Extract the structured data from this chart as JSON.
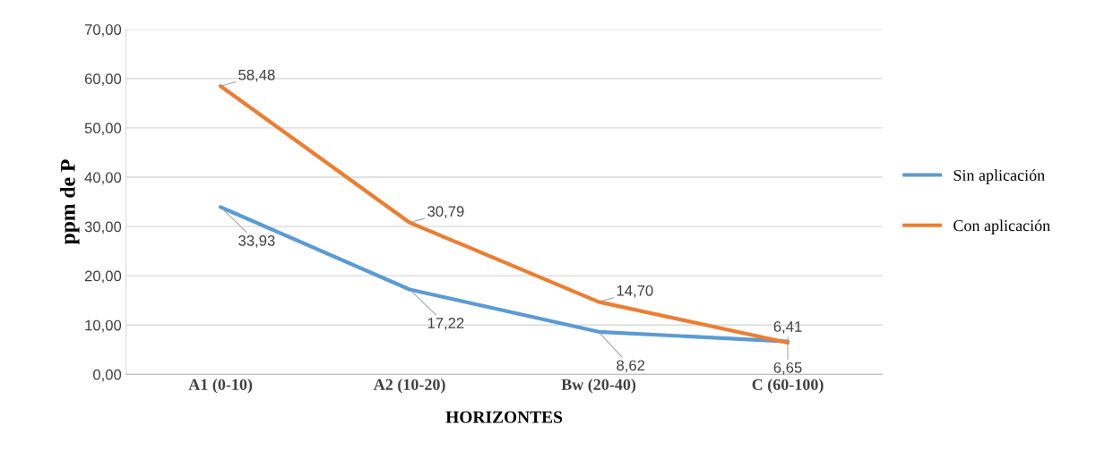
{
  "chart_data": {
    "type": "line",
    "xlabel": "HORIZONTES",
    "ylabel": "ppm de P",
    "categories": [
      "A1 (0-10)",
      "A2 (10-20)",
      "Bw (20-40)",
      "C (60-100)"
    ],
    "series": [
      {
        "name": "Sin aplicación",
        "color": "#5b9bd5",
        "values": [
          33.93,
          17.22,
          8.62,
          6.65
        ],
        "value_labels": [
          "33,93",
          "17,22",
          "8,62",
          "6,65"
        ]
      },
      {
        "name": "Con aplicación",
        "color": "#ed7d31",
        "values": [
          58.48,
          30.79,
          14.7,
          6.41
        ],
        "value_labels": [
          "58,48",
          "30,79",
          "14,70",
          "6,41"
        ]
      }
    ],
    "ylim": [
      0,
      70
    ],
    "yticks": [
      {
        "value": 0,
        "label": "0,00"
      },
      {
        "value": 10,
        "label": "10,00"
      },
      {
        "value": 20,
        "label": "20,00"
      },
      {
        "value": 30,
        "label": "30,00"
      },
      {
        "value": 40,
        "label": "40,00"
      },
      {
        "value": 50,
        "label": "50,00"
      },
      {
        "value": 60,
        "label": "60,00"
      },
      {
        "value": 70,
        "label": "70,00"
      }
    ],
    "grid": "y",
    "legend": "right",
    "marker": "none",
    "line_style": "solid"
  }
}
